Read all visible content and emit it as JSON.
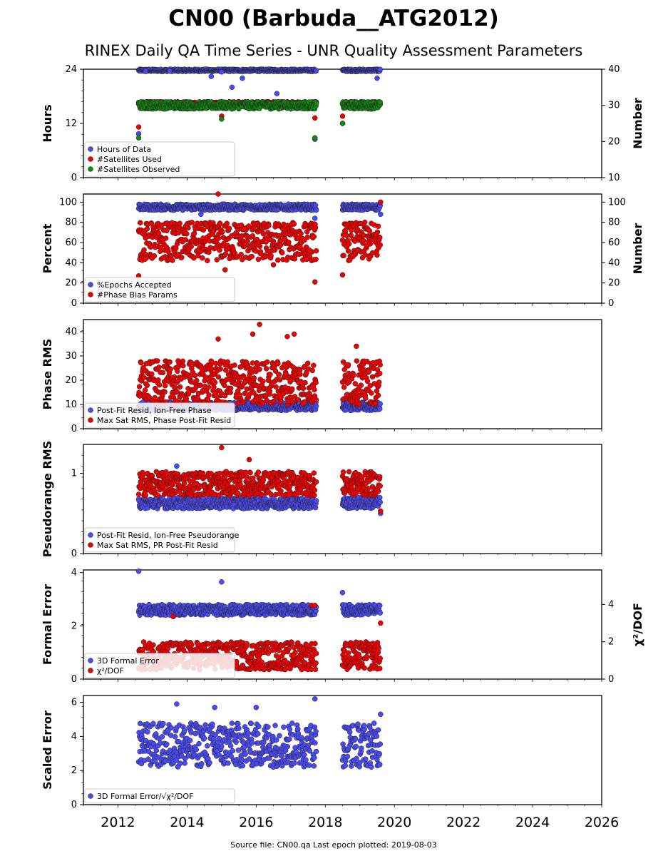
{
  "title": "CN00 (Barbuda__ATG2012)",
  "subtitle": "RINEX Daily QA Time Series - UNR Quality Assessment Parameters",
  "footer": "Source file: CN00.qa Last epoch plotted: 2019-08-03",
  "colors": {
    "blue": "#4a4af0",
    "red": "#ee0000",
    "green": "#118811",
    "navy": "#0a0a4a"
  },
  "chart_data": [
    {
      "type": "scatter",
      "ylabel": "Hours",
      "y2label": "Number",
      "ylim": [
        0,
        24
      ],
      "yticks": [
        "0",
        "12",
        "24"
      ],
      "y2lim": [
        10,
        40
      ],
      "y2ticks": [
        "10",
        "20",
        "30",
        "40"
      ],
      "legend": [
        "Hours of Data",
        "#Satellites Used",
        "#Satellites Observed"
      ],
      "legend_loc": "lower-left",
      "series": [
        {
          "name": "Hours of Data",
          "color": "blue",
          "points": [
            [
              2012.6,
              9.7
            ],
            [
              2012.8,
              23.5
            ],
            [
              2013.5,
              23.6
            ],
            [
              2014.7,
              22.4
            ],
            [
              2015.0,
              23.4
            ],
            [
              2015.3,
              20.0
            ],
            [
              2015.6,
              22.0
            ],
            [
              2016.6,
              18.6
            ],
            [
              2017.7,
              8.5
            ],
            [
              2018.5,
              12.0
            ],
            [
              2019.5,
              22.0
            ]
          ],
          "band": [
            23.5,
            24.0
          ]
        },
        {
          "name": "#Satellites Used",
          "color": "red",
          "points": [
            [
              2012.6,
              24.0
            ],
            [
              2015.0,
              27.0
            ],
            [
              2017.7,
              26.5
            ],
            [
              2018.5,
              27.0
            ]
          ],
          "band": [
            30.0,
            31.0
          ]
        },
        {
          "name": "#Satellites Observed",
          "color": "green",
          "points": [
            [
              2012.6,
              21.0
            ],
            [
              2015.0,
              26.2
            ],
            [
              2017.7,
              21.0
            ],
            [
              2018.5,
              25.0
            ]
          ],
          "band": [
            29.0,
            31.0
          ]
        }
      ]
    },
    {
      "type": "scatter",
      "ylabel": "Percent",
      "y2label": "Number",
      "ylim": [
        0,
        108
      ],
      "yticks": [
        "0",
        "20",
        "40",
        "60",
        "80",
        "100"
      ],
      "y2ticks": [
        "0",
        "20",
        "40",
        "60",
        "80",
        "100"
      ],
      "legend": [
        "%Epochs Accepted",
        "#Phase Bias Params"
      ],
      "legend_loc": "lower-left",
      "series": [
        {
          "name": "%Epochs Accepted",
          "color": "blue",
          "points": [
            [
              2014.4,
              88
            ],
            [
              2017.7,
              84
            ],
            [
              2019.6,
              88
            ]
          ],
          "band": [
            92,
            98
          ]
        },
        {
          "name": "#Phase Bias Params",
          "color": "red",
          "points": [
            [
              2012.6,
              27
            ],
            [
              2014.9,
              108
            ],
            [
              2015.1,
              33
            ],
            [
              2016.5,
              38
            ],
            [
              2017.7,
              21
            ],
            [
              2018.5,
              28
            ],
            [
              2019.6,
              100
            ]
          ],
          "band": [
            42,
            80
          ]
        }
      ]
    },
    {
      "type": "scatter",
      "ylabel": "Phase RMS",
      "ylim": [
        0,
        45
      ],
      "yticks": [
        "0",
        "10",
        "20",
        "30",
        "40"
      ],
      "legend": [
        "Post-Fit Resid, Ion-Free Phase",
        "Max Sat RMS, Phase Post-Fit Resid"
      ],
      "legend_loc": "lower-left",
      "series": [
        {
          "name": "Post-Fit Resid, Ion-Free Phase",
          "color": "blue",
          "band": [
            7.5,
            11
          ]
        },
        {
          "name": "Max Sat RMS, Phase Post-Fit Resid",
          "color": "red",
          "points": [
            [
              2014.9,
              37
            ],
            [
              2015.9,
              39
            ],
            [
              2016.1,
              43
            ],
            [
              2016.9,
              38
            ],
            [
              2017.1,
              39
            ],
            [
              2018.9,
              34
            ]
          ],
          "band": [
            10,
            28
          ]
        }
      ]
    },
    {
      "type": "scatter",
      "ylabel": "Pseudorange RMS",
      "ylim": [
        0,
        1.36
      ],
      "yticks": [
        "0",
        "1"
      ],
      "legend": [
        "Post-Fit Resid, Ion-Free Pseudorange",
        "Max Sat RMS, PR Post-Fit Resid"
      ],
      "legend_loc": "lower-left",
      "series": [
        {
          "name": "Post-Fit Resid, Ion-Free Pseudorange",
          "color": "blue",
          "points": [
            [
              2013.7,
              1.09
            ],
            [
              2019.6,
              0.5
            ]
          ],
          "band": [
            0.56,
            0.7
          ]
        },
        {
          "name": "Max Sat RMS, PR Post-Fit Resid",
          "color": "red",
          "points": [
            [
              2015.0,
              1.32
            ],
            [
              2015.8,
              1.17
            ],
            [
              2019.6,
              0.53
            ]
          ],
          "band": [
            0.72,
            1.02
          ]
        }
      ]
    },
    {
      "type": "scatter",
      "ylabel": "Formal Error",
      "y2label": "χ²/DOF",
      "ylim": [
        0,
        4.1
      ],
      "yticks": [
        "0",
        "2",
        "4"
      ],
      "y2ticks": [
        "0",
        "2",
        "4"
      ],
      "legend": [
        "3D Formal Error",
        "χ²/DOF"
      ],
      "legend_loc": "lower-left",
      "series": [
        {
          "name": "3D Formal Error",
          "color": "blue",
          "points": [
            [
              2012.6,
              4.05
            ],
            [
              2015.0,
              3.65
            ],
            [
              2018.5,
              3.25
            ]
          ],
          "band": [
            2.4,
            2.8
          ]
        },
        {
          "name": "χ²/DOF",
          "color": "red",
          "points": [
            [
              2013.6,
              3.35
            ],
            [
              2017.6,
              3.95
            ],
            [
              2017.7,
              3.95
            ],
            [
              2019.6,
              3.0
            ]
          ],
          "band": [
            0.5,
            2.0
          ]
        }
      ]
    },
    {
      "type": "scatter",
      "ylabel": "Scaled Error",
      "ylim": [
        0,
        6.4
      ],
      "yticks": [
        "0",
        "2",
        "4",
        "6"
      ],
      "legend": [
        "3D Formal Error/√χ²/DOF"
      ],
      "legend_loc": "lower-left",
      "series": [
        {
          "name": "3D Formal Error/√χ²/DOF",
          "color": "blue",
          "points": [
            [
              2013.7,
              5.9
            ],
            [
              2014.8,
              5.7
            ],
            [
              2016.0,
              5.7
            ],
            [
              2017.7,
              6.2
            ],
            [
              2019.6,
              5.3
            ]
          ],
          "band": [
            2.2,
            4.8
          ]
        }
      ]
    }
  ],
  "xaxis": {
    "xlim": [
      2011,
      2026
    ],
    "ticks": [
      "2012",
      "2014",
      "2016",
      "2018",
      "2020",
      "2022",
      "2024",
      "2026"
    ],
    "data_segments": [
      [
        2012.6,
        2017.75
      ],
      [
        2018.5,
        2019.6
      ]
    ]
  }
}
